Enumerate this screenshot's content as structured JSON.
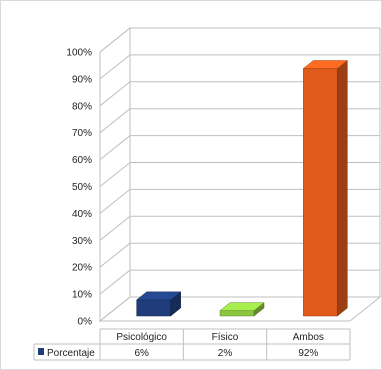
{
  "chart_data": {
    "type": "bar",
    "categories": [
      "Psicológico",
      "Físico",
      "Ambos"
    ],
    "series": [
      {
        "name": "Porcentaje",
        "values": [
          6,
          2,
          92
        ],
        "labels": [
          "6%",
          "2%",
          "92%"
        ]
      }
    ],
    "ylim": [
      0,
      100
    ],
    "ytick_labels": [
      "0%",
      "10%",
      "20%",
      "30%",
      "40%",
      "50%",
      "60%",
      "70%",
      "80%",
      "90%",
      "100%"
    ],
    "grid": true,
    "legend": "data-table",
    "bar_colors": [
      "#1f3d7a",
      "#8cc63f",
      "#e05a1c"
    ]
  }
}
